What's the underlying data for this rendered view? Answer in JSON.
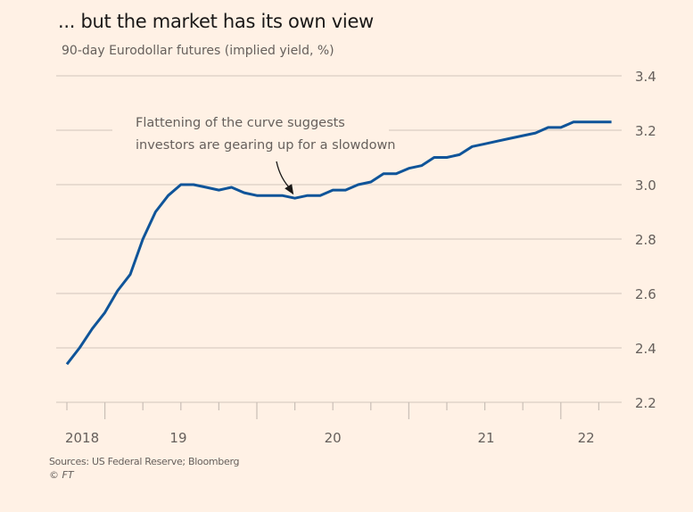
{
  "header": {
    "title": "... but the market has its own view",
    "subtitle": "90-day Eurodollar futures (implied yield, %)"
  },
  "footer": {
    "source": "Sources: US Federal Reserve; Bloomberg",
    "copyright": "© FT"
  },
  "colors": {
    "background": "#FFF1E5",
    "line": "#0F5499",
    "grid": "#D9CEC4",
    "text": "#66605C"
  },
  "chart_data": {
    "type": "line",
    "title": "... but the market has its own view",
    "subtitle": "90-day Eurodollar futures (implied yield, %)",
    "xlabel": "",
    "ylabel": "Implied yield, %",
    "ylim": [
      2.2,
      3.4
    ],
    "yticks": [
      "3.4",
      "3.2",
      "3.0",
      "2.8",
      "2.6",
      "2.4",
      "2.2"
    ],
    "y_axis_position": "right",
    "grid": true,
    "x_tick_labels": [
      {
        "label": "2018",
        "month_index": 1.2
      },
      {
        "label": "19",
        "month_index": 8.8
      },
      {
        "label": "20",
        "month_index": 21
      },
      {
        "label": "21",
        "month_index": 33.1
      },
      {
        "label": "22",
        "month_index": 41
      }
    ],
    "x_ticks_month_index": [
      0,
      3,
      6,
      9,
      12,
      15,
      18,
      21,
      24,
      27,
      30,
      33,
      36,
      39,
      42
    ],
    "x_major_ticks_month_index": [
      3,
      15,
      27,
      39
    ],
    "x_range_months": [
      0,
      43
    ],
    "series": [
      {
        "name": "90-day Eurodollar futures implied yield",
        "values": [
          2.34,
          2.4,
          2.47,
          2.53,
          2.61,
          2.67,
          2.8,
          2.9,
          2.96,
          3.0,
          3.0,
          2.99,
          2.98,
          2.99,
          2.97,
          2.96,
          2.96,
          2.96,
          2.95,
          2.96,
          2.96,
          2.98,
          2.98,
          3.0,
          3.01,
          3.04,
          3.04,
          3.06,
          3.07,
          3.1,
          3.1,
          3.11,
          3.14,
          3.15,
          3.16,
          3.17,
          3.18,
          3.19,
          3.21,
          3.21,
          3.23,
          3.23,
          3.23,
          3.23
        ]
      }
    ],
    "annotation": {
      "lines": [
        "Flattening of the curve suggests",
        "investors are gearing up for a slowdown"
      ],
      "points_to_month_index": 17.9,
      "points_to_value": 2.95
    }
  }
}
